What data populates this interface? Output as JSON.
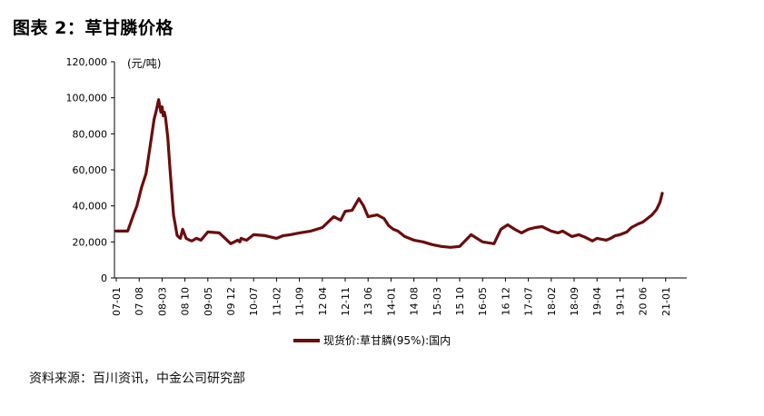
{
  "figure": {
    "title": "图表 2：草甘膦价格",
    "source": "资料来源：百川资讯，中金公司研究部"
  },
  "chart_data": {
    "type": "line",
    "unit_label": "(元/吨)",
    "ylim": [
      0,
      120000
    ],
    "y_ticks": [
      "0",
      "20,000",
      "40,000",
      "60,000",
      "80,000",
      "100,000",
      "120,000"
    ],
    "x_ticks": [
      "07-01",
      "07 08",
      "08-03",
      "08 10",
      "09-05",
      "09 12",
      "10-07",
      "11-02",
      "11-09",
      "12 04",
      "12-11",
      "13 06",
      "14-01",
      "14 08",
      "15-03",
      "15 10",
      "16-05",
      "16 12",
      "17-07",
      "18-02",
      "18-09",
      "19-04",
      "19-11",
      "20 06",
      "21-01"
    ],
    "legend": "现货价:草甘膦(95%):国内",
    "colors": {
      "line": "#6b0d0d"
    },
    "series": [
      {
        "name": "现货价:草甘膦(95%):国内",
        "x": [
          0,
          0.5,
          0.75,
          0.9,
          1.1,
          1.3,
          1.5,
          1.65,
          1.75,
          1.85,
          1.95,
          2.0,
          2.05,
          2.1,
          2.15,
          2.25,
          2.35,
          2.5,
          2.6,
          2.65,
          2.7,
          2.8,
          2.9,
          3.05,
          3.2,
          3.3,
          3.5,
          3.7,
          4.0,
          4.5,
          5.0,
          5.3,
          5.4,
          5.45,
          5.55,
          5.7,
          6.0,
          6.5,
          7.0,
          7.3,
          7.6,
          8.0,
          8.5,
          9.0,
          9.5,
          9.8,
          10.0,
          10.3,
          10.6,
          10.8,
          11.0,
          11.4,
          11.7,
          11.9,
          12.1,
          12.3,
          12.6,
          13.0,
          13.4,
          13.8,
          14.2,
          14.6,
          15.0,
          15.5,
          16.0,
          16.5,
          16.8,
          17.1,
          17.4,
          17.7,
          18.0,
          18.3,
          18.6,
          19.0,
          19.3,
          19.5,
          19.7,
          19.9,
          20.2,
          20.5,
          20.8,
          21.0,
          21.4,
          21.6,
          21.8,
          22.0,
          22.3,
          22.5,
          22.8,
          23.0,
          23.2,
          23.4,
          23.6,
          23.75,
          23.85
        ],
        "y": [
          26000,
          26000,
          35000,
          40000,
          50000,
          58000,
          75000,
          88000,
          93000,
          99000,
          92000,
          95000,
          90000,
          92000,
          89000,
          78000,
          60000,
          35000,
          28000,
          24000,
          23000,
          22000,
          27000,
          22000,
          21000,
          20500,
          22000,
          21000,
          25500,
          25000,
          19000,
          21000,
          20000,
          22000,
          21500,
          21000,
          24000,
          23500,
          22000,
          23500,
          24000,
          25000,
          26000,
          28000,
          34000,
          32000,
          37000,
          37500,
          44000,
          40000,
          34000,
          35000,
          33000,
          29000,
          27000,
          26000,
          23000,
          21000,
          20000,
          18500,
          17500,
          17000,
          17500,
          24000,
          20000,
          19000,
          27000,
          29500,
          27000,
          25000,
          27000,
          28000,
          28500,
          26000,
          25000,
          26000,
          24500,
          23000,
          24000,
          22500,
          20500,
          22000,
          21000,
          22000,
          23500,
          24000,
          25500,
          28000,
          30000,
          31000,
          33000,
          35000,
          38000,
          42000,
          47000
        ]
      }
    ]
  }
}
